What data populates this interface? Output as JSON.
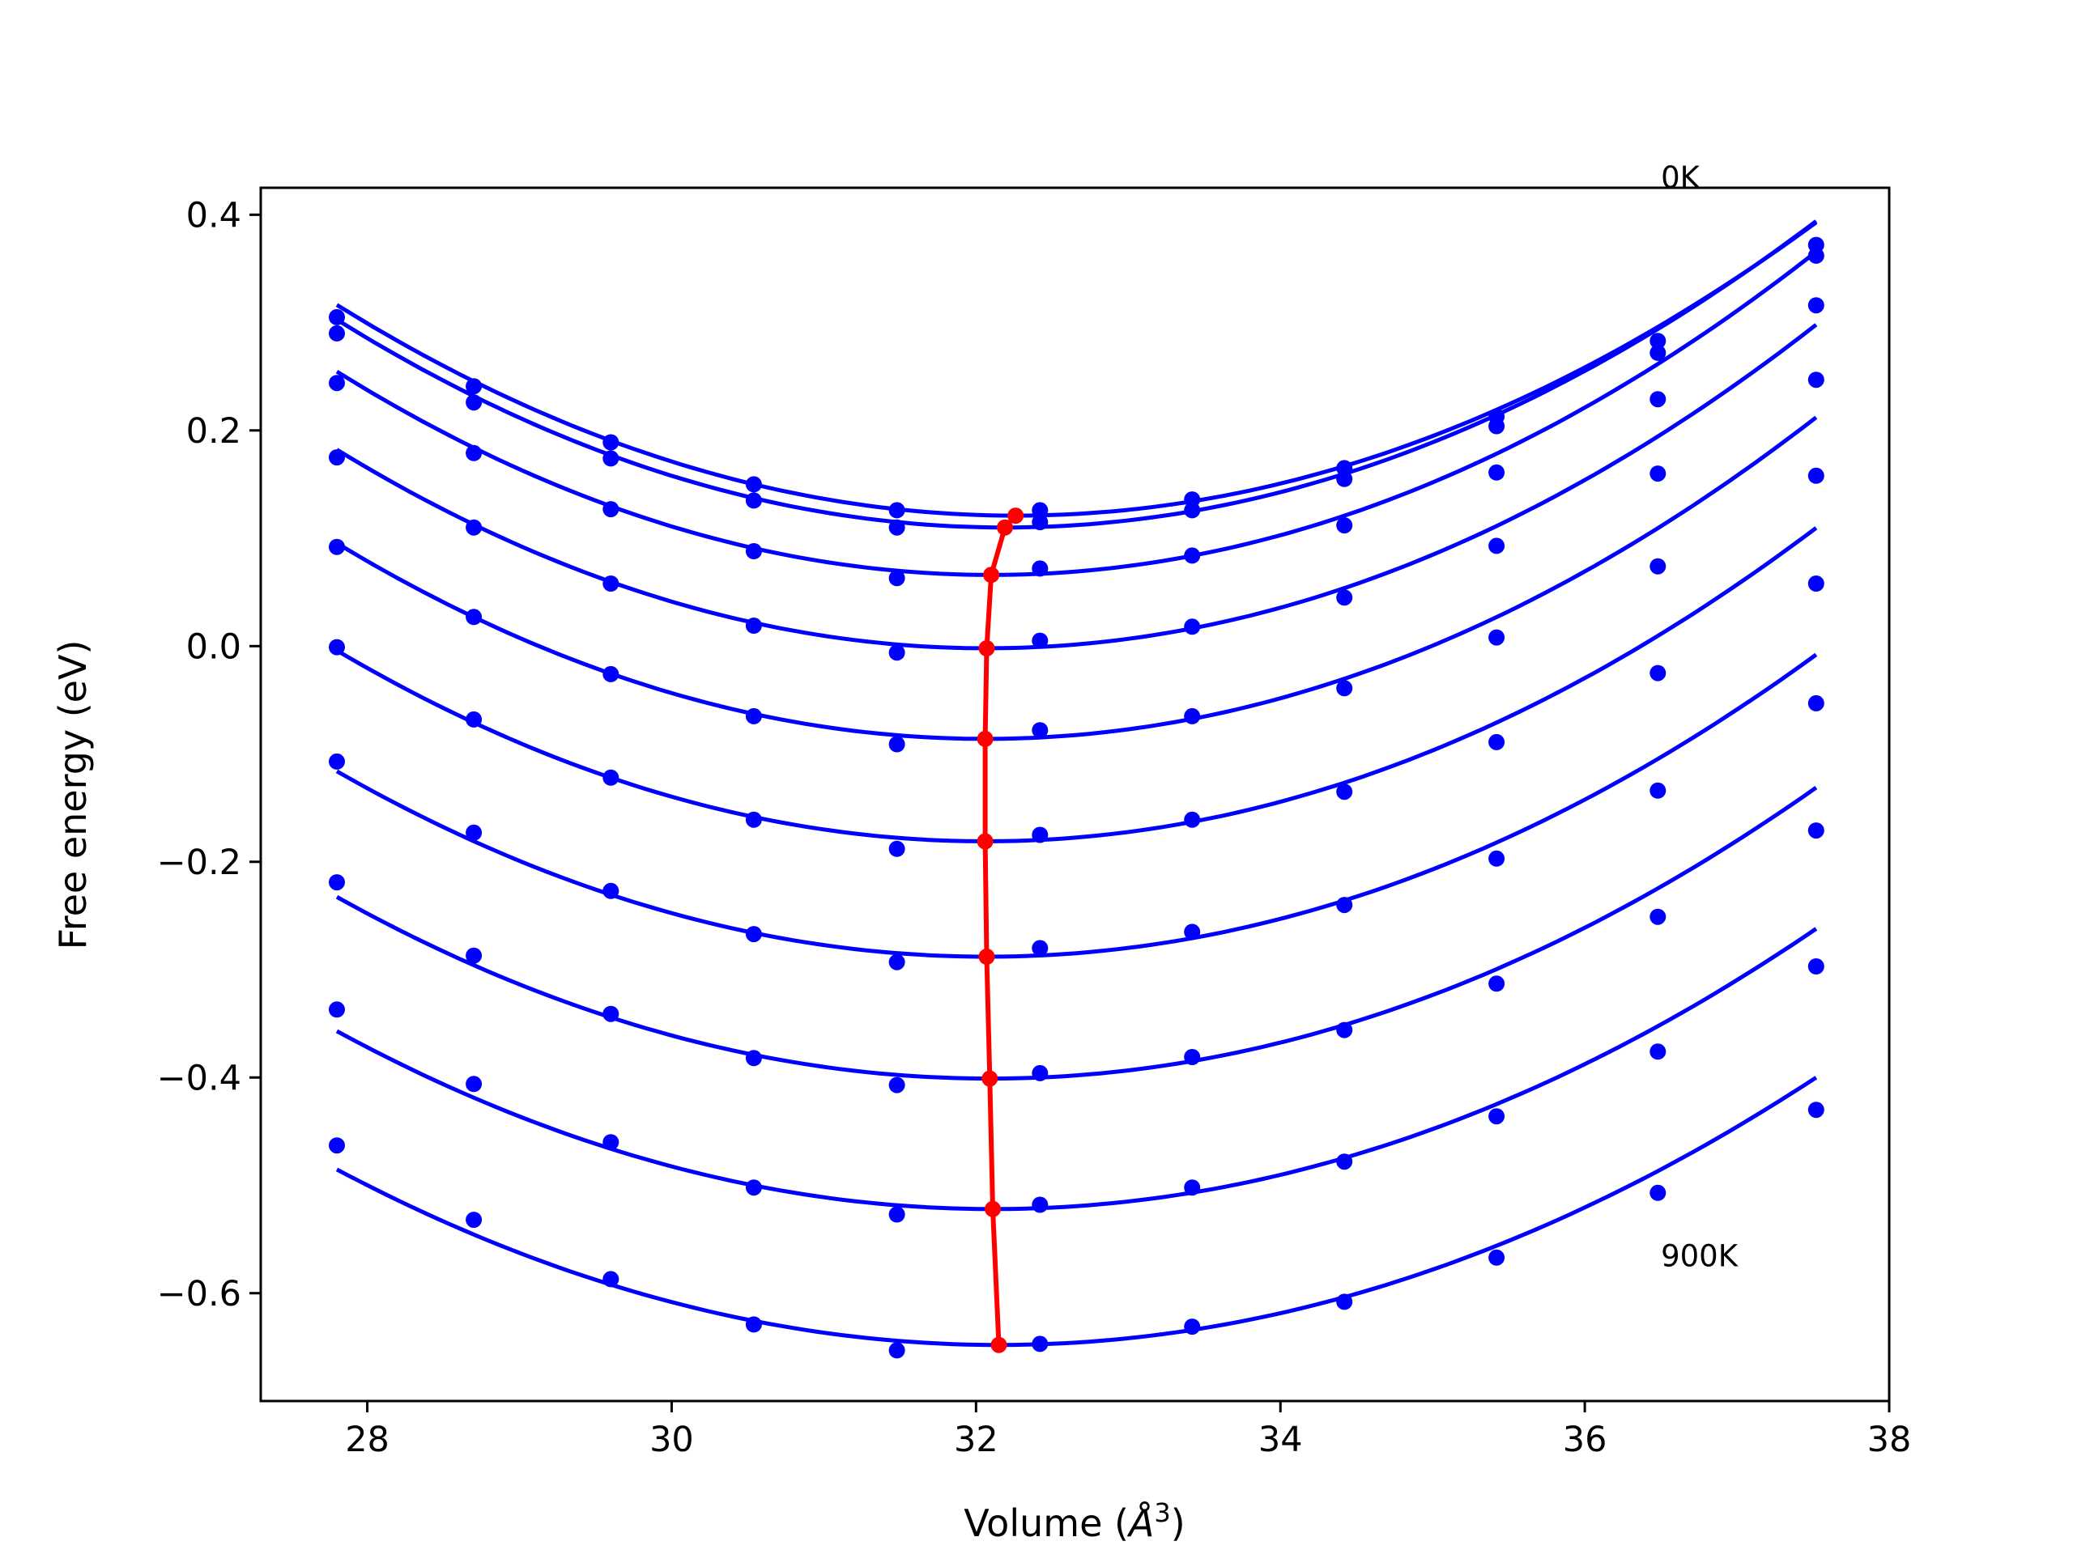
{
  "chart_data": {
    "type": "line",
    "xlabel_prefix": "Volume (",
    "xlabel_unit": "Å",
    "xlabel_exp": "3",
    "xlabel_suffix": ")",
    "ylabel": "Free energy (eV)",
    "xlim": [
      27.3,
      38.0
    ],
    "ylim": [
      -0.7,
      0.425
    ],
    "xticks": [
      28,
      30,
      32,
      34,
      36,
      38
    ],
    "yticks": [
      -0.6,
      -0.4,
      -0.2,
      0.0,
      0.2,
      0.4
    ],
    "ytick_labels": [
      "−0.6",
      "−0.4",
      "−0.2",
      "0.0",
      "0.2",
      "0.4"
    ],
    "annotations": [
      {
        "text": "0K",
        "x": 36.5,
        "y": 0.425
      },
      {
        "text": "900K",
        "x": 36.5,
        "y": -0.575
      }
    ],
    "x": [
      27.8,
      28.7,
      29.6,
      30.54,
      31.48,
      32.42,
      33.42,
      34.42,
      35.42,
      36.48,
      37.52
    ],
    "series": [
      {
        "values": [
          0.305,
          0.241,
          0.189,
          0.15,
          0.126,
          0.126,
          0.136,
          0.165,
          0.213,
          0.283,
          0.372
        ],
        "curve": {
          "a": 0.009825,
          "v0": 32.26,
          "e0": 0.121
        }
      },
      {
        "values": [
          0.29,
          0.226,
          0.174,
          0.135,
          0.11,
          0.115,
          0.126,
          0.155,
          0.204,
          0.272,
          0.362
        ],
        "curve": {
          "a": 0.01,
          "v0": 32.19,
          "e0": 0.11
        }
      },
      {
        "values": [
          0.244,
          0.179,
          0.127,
          0.088,
          0.063,
          0.072,
          0.084,
          0.112,
          0.161,
          0.229,
          0.316
        ],
        "curve": {
          "a": 0.0102,
          "v0": 32.1,
          "e0": 0.066
        }
      },
      {
        "values": [
          0.175,
          0.11,
          0.058,
          0.019,
          -0.006,
          0.005,
          0.018,
          0.045,
          0.093,
          0.16,
          0.247
        ],
        "curve": {
          "a": 0.0101,
          "v0": 32.07,
          "e0": -0.002
        }
      },
      {
        "values": [
          0.092,
          0.027,
          -0.026,
          -0.065,
          -0.091,
          -0.078,
          -0.065,
          -0.039,
          0.008,
          0.074,
          0.158
        ],
        "curve": {
          "a": 0.01,
          "v0": 32.06,
          "e0": -0.086
        }
      },
      {
        "values": [
          -0.001,
          -0.068,
          -0.122,
          -0.161,
          -0.188,
          -0.175,
          -0.161,
          -0.135,
          -0.089,
          -0.025,
          0.058
        ],
        "curve": {
          "a": 0.00975,
          "v0": 32.06,
          "e0": -0.181
        }
      },
      {
        "values": [
          -0.107,
          -0.173,
          -0.227,
          -0.267,
          -0.293,
          -0.28,
          -0.265,
          -0.24,
          -0.197,
          -0.134,
          -0.053
        ],
        "curve": {
          "a": 0.00943,
          "v0": 32.07,
          "e0": -0.288
        }
      },
      {
        "values": [
          -0.219,
          -0.287,
          -0.341,
          -0.382,
          -0.407,
          -0.396,
          -0.381,
          -0.356,
          -0.313,
          -0.251,
          -0.171
        ],
        "curve": {
          "a": 0.00915,
          "v0": 32.09,
          "e0": -0.401
        }
      },
      {
        "values": [
          -0.337,
          -0.406,
          -0.46,
          -0.502,
          -0.527,
          -0.518,
          -0.502,
          -0.478,
          -0.436,
          -0.376,
          -0.297
        ],
        "curve": {
          "a": 0.00888,
          "v0": 32.11,
          "e0": -0.522
        }
      },
      {
        "values": [
          -0.463,
          -0.532,
          -0.587,
          -0.629,
          -0.653,
          -0.647,
          -0.631,
          -0.608,
          -0.567,
          -0.507,
          -0.43
        ],
        "curve": {
          "a": 0.0086,
          "v0": 32.15,
          "e0": -0.648
        }
      }
    ],
    "minima": {
      "x": [
        32.26,
        32.19,
        32.1,
        32.07,
        32.06,
        32.06,
        32.07,
        32.09,
        32.11,
        32.15
      ],
      "y": [
        0.121,
        0.11,
        0.066,
        -0.002,
        -0.086,
        -0.181,
        -0.288,
        -0.401,
        -0.522,
        -0.648
      ]
    },
    "colors": {
      "curve": "#0000ff",
      "minima": "#ff0000",
      "axis": "#000000"
    }
  }
}
